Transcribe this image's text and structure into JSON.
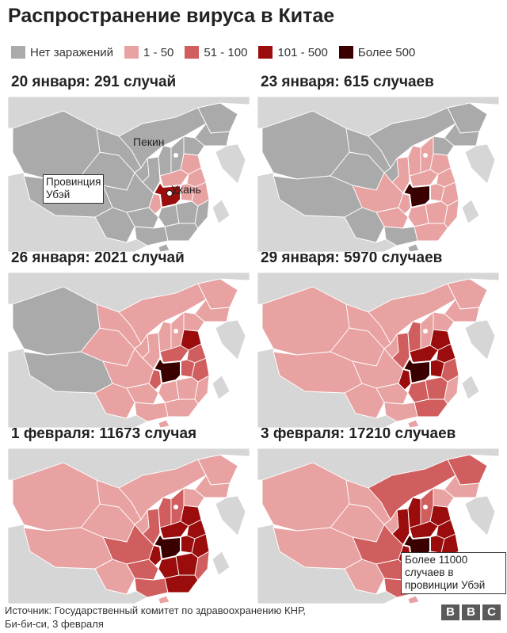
{
  "title": "Распространение вируса в Китае",
  "legend": [
    {
      "label": "Нет заражений",
      "color": "#aaaaaa"
    },
    {
      "label": "1 - 50",
      "color": "#e8a2a2"
    },
    {
      "label": "51 - 100",
      "color": "#d05e5e"
    },
    {
      "label": "101 - 500",
      "color": "#9b0c0c"
    },
    {
      "label": "Более 500",
      "color": "#3a0000"
    }
  ],
  "colors": {
    "background_land": "#d6d6d6",
    "border": "#ffffff",
    "hubei_outline": "#ffffff"
  },
  "panels": [
    {
      "title": "20 января: 291 случай",
      "mix": [
        0.78,
        0.22,
        0.0,
        0.0
      ],
      "hubei": "101 - 500"
    },
    {
      "title": "23 января: 615 случаев",
      "mix": [
        0.45,
        0.55,
        0.0,
        0.0
      ],
      "hubei": "Более 500"
    },
    {
      "title": "26 января: 2021 случай",
      "mix": [
        0.08,
        0.72,
        0.18,
        0.02
      ],
      "hubei": "Более 500"
    },
    {
      "title": "29 января: 5970 случаев",
      "mix": [
        0.0,
        0.58,
        0.22,
        0.2
      ],
      "hubei": "Более 500"
    },
    {
      "title": "1 февраля: 11673 случая",
      "mix": [
        0.0,
        0.42,
        0.25,
        0.33
      ],
      "hubei": "Более 500"
    },
    {
      "title": "3 февраля: 17210 случаев",
      "mix": [
        0.0,
        0.32,
        0.26,
        0.42
      ],
      "hubei": "Более 500"
    }
  ],
  "annotations": {
    "beijing": "Пекин",
    "wuhan": "Ухань",
    "hubei_label": [
      "Провинция",
      "Убэй"
    ],
    "callout": [
      "Более 11000",
      "случаев в",
      "провинции Убэй"
    ]
  },
  "source": [
    "Источник: Государственный комитет по здравоохранению КНР,",
    "Би-би-си, 3 февраля"
  ],
  "logo": [
    "B",
    "B",
    "C"
  ]
}
